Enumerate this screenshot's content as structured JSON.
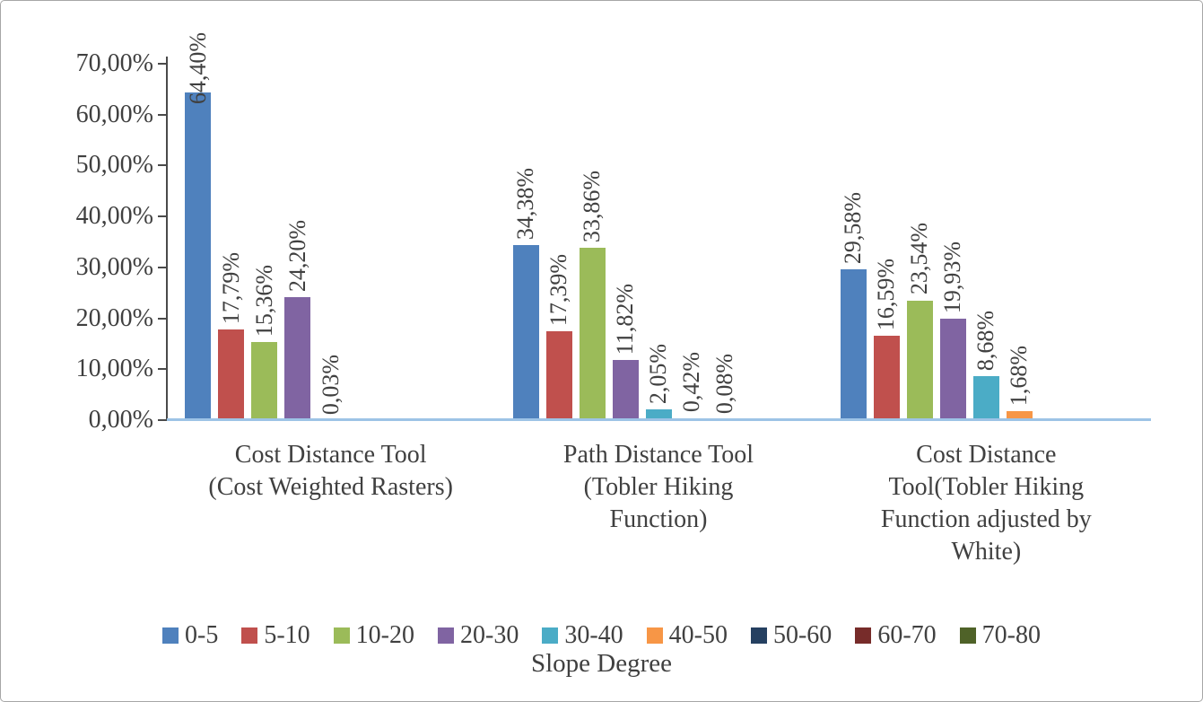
{
  "figure": {
    "background": "#ffffff",
    "border_color": "#a6a6a6",
    "text_color": "#404040"
  },
  "chart_data": {
    "type": "bar",
    "title": "",
    "xlabel": "Slope Degree",
    "ylabel": "",
    "ylim": [
      0,
      70
    ],
    "grid": false,
    "legend_position": "bottom",
    "value_label_rotation": 90,
    "y_tick_labels": [
      "0,00%",
      "10,00%",
      "20,00%",
      "30,00%",
      "40,00%",
      "50,00%",
      "60,00%",
      "70,00%"
    ],
    "axis": {
      "y_line_color": "#4a4a4a",
      "x_line_color": "#9dc3e6"
    },
    "categories": [
      {
        "label": "Cost Distance Tool (Cost Weighted Rasters)",
        "lines": [
          "Cost Distance Tool",
          "(Cost Weighted Rasters)"
        ]
      },
      {
        "label": "Path Distance Tool (Tobler Hiking Function)",
        "lines": [
          "Path Distance Tool",
          "(Tobler Hiking",
          "Function)"
        ]
      },
      {
        "label": "Cost Distance Tool(Tobler Hiking Function adjusted by White)",
        "lines": [
          "Cost Distance",
          "Tool(Tobler Hiking",
          "Function adjusted by",
          "White)"
        ]
      }
    ],
    "series": [
      {
        "name": "0-5",
        "color": "#4f81bd",
        "values": [
          64.4,
          34.38,
          29.58
        ],
        "value_labels": [
          "64,40%",
          "34,38%",
          "29,58%"
        ]
      },
      {
        "name": "5-10",
        "color": "#c0504d",
        "values": [
          17.79,
          17.39,
          16.59
        ],
        "value_labels": [
          "17,79%",
          "17,39%",
          "16,59%"
        ]
      },
      {
        "name": "10-20",
        "color": "#9bbb59",
        "values": [
          15.36,
          33.86,
          23.54
        ],
        "value_labels": [
          "15,36%",
          "33,86%",
          "23,54%"
        ]
      },
      {
        "name": "20-30",
        "color": "#8064a2",
        "values": [
          24.2,
          11.82,
          19.93
        ],
        "value_labels": [
          "24,20%",
          "11,82%",
          "19,93%"
        ]
      },
      {
        "name": "30-40",
        "color": "#4bacc6",
        "values": [
          0.03,
          2.05,
          8.68
        ],
        "value_labels": [
          "0,03%",
          "2,05%",
          "8,68%"
        ]
      },
      {
        "name": "40-50",
        "color": "#f79646",
        "values": [
          0,
          0.42,
          1.68
        ],
        "value_labels": [
          "",
          "0,42%",
          "1,68%"
        ]
      },
      {
        "name": "50-60",
        "color": "#254061",
        "values": [
          0,
          0.08,
          0
        ],
        "value_labels": [
          "",
          "0,08%",
          ""
        ]
      },
      {
        "name": "60-70",
        "color": "#772c2a",
        "values": [
          0,
          0,
          0
        ],
        "value_labels": [
          "",
          "",
          ""
        ]
      },
      {
        "name": "70-80",
        "color": "#4f6228",
        "values": [
          0,
          0,
          0
        ],
        "value_labels": [
          "",
          "",
          ""
        ]
      }
    ]
  }
}
